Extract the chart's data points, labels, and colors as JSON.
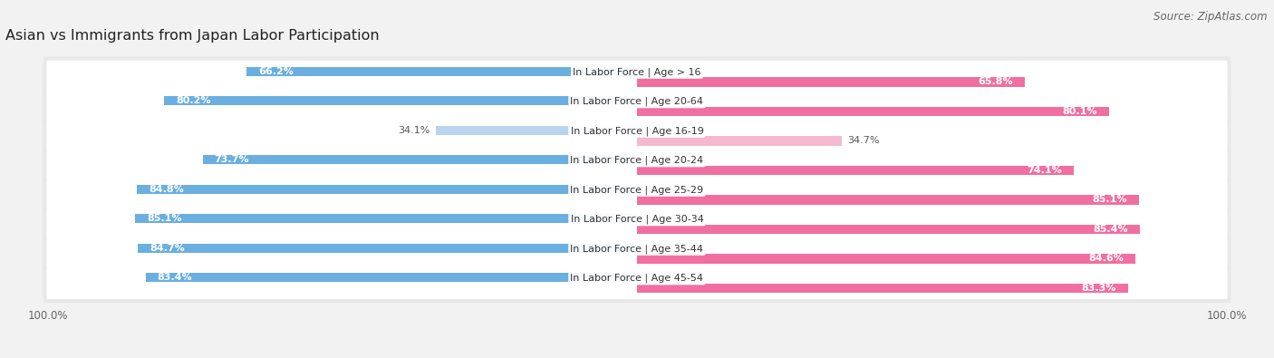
{
  "title": "Asian vs Immigrants from Japan Labor Participation",
  "source": "Source: ZipAtlas.com",
  "categories": [
    "In Labor Force | Age > 16",
    "In Labor Force | Age 20-64",
    "In Labor Force | Age 16-19",
    "In Labor Force | Age 20-24",
    "In Labor Force | Age 25-29",
    "In Labor Force | Age 30-34",
    "In Labor Force | Age 35-44",
    "In Labor Force | Age 45-54"
  ],
  "asian_values": [
    66.2,
    80.2,
    34.1,
    73.7,
    84.8,
    85.1,
    84.7,
    83.4
  ],
  "japan_values": [
    65.8,
    80.1,
    34.7,
    74.1,
    85.1,
    85.4,
    84.6,
    83.3
  ],
  "asian_color": "#6aafe0",
  "asian_color_light": "#b8d4ee",
  "japan_color": "#f06fa0",
  "japan_color_light": "#f5b8d0",
  "bg_color": "#f2f2f2",
  "row_bg_odd": "#ffffff",
  "row_bg_even": "#e8e8e8",
  "label_fontsize": 8.0,
  "title_fontsize": 11.5,
  "source_fontsize": 8.5,
  "legend_fontsize": 9,
  "threshold": 50
}
